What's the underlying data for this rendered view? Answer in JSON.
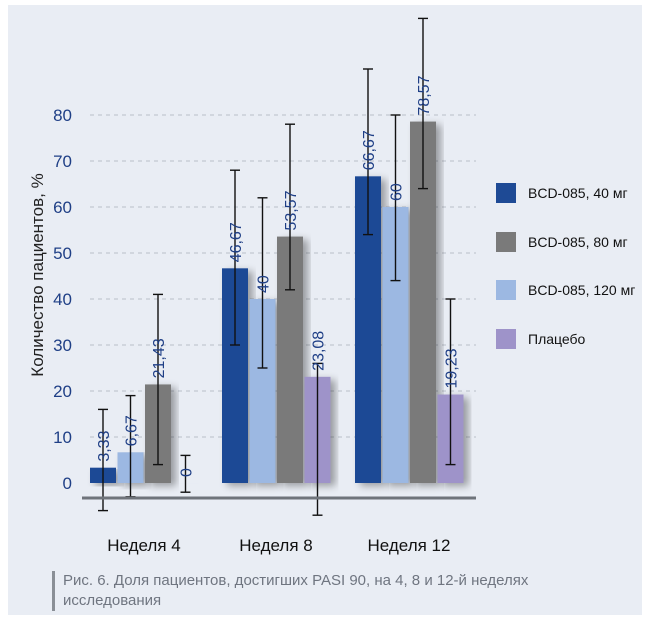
{
  "chart_data": {
    "type": "bar",
    "categories": [
      "Неделя 4",
      "Неделя 8",
      "Неделя 12"
    ],
    "ylabel": "Количество пациентов, %",
    "yticks": [
      0,
      10,
      20,
      30,
      40,
      50,
      60,
      70,
      80
    ],
    "series": [
      {
        "name": "BCD-085, 40 мг",
        "color": "#1e4a95",
        "values": [
          3.33,
          46.67,
          66.67
        ],
        "labels": [
          "3,33",
          "46,67",
          "66,67"
        ],
        "err_low": [
          -6,
          30,
          54
        ],
        "err_high": [
          16,
          68,
          90
        ]
      },
      {
        "name": "BCD-085, 80 мг",
        "color": "#7a7a7a",
        "values": [
          21.43,
          53.57,
          78.57
        ],
        "labels": [
          "21,43",
          "53,57",
          "78,57"
        ],
        "err_low": [
          4,
          42,
          64
        ],
        "err_high": [
          41,
          78,
          101
        ]
      },
      {
        "name": "BCD-085, 120 мг",
        "color": "#9cb8e2",
        "values": [
          6.67,
          40,
          60
        ],
        "labels": [
          "6,67",
          "40",
          "60"
        ],
        "err_low": [
          -3,
          25,
          44
        ],
        "err_high": [
          19,
          62,
          80
        ]
      },
      {
        "name": "Плацебо",
        "color": "#9e93c9",
        "values": [
          0,
          23.08,
          19.23
        ],
        "labels": [
          "0",
          "23,08",
          "19,23"
        ],
        "err_low": [
          -2,
          -7,
          4
        ],
        "err_high": [
          6,
          26,
          40
        ]
      }
    ]
  },
  "caption": {
    "line1": "Рис. 6. Доля пациентов, достигших PASI 90, на 4, 8 и 12-й неделях",
    "line2": "исследования"
  }
}
